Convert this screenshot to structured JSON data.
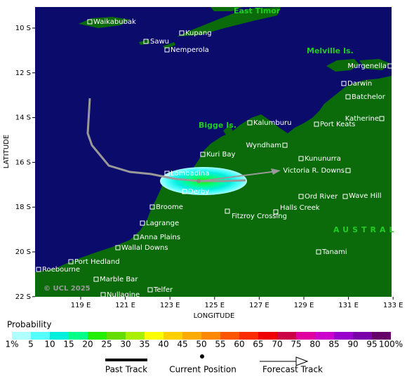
{
  "axes": {
    "x_label": "LONGITUDE",
    "y_label": "LATITUDE",
    "x_ticks": [
      "119 E",
      "121 E",
      "123 E",
      "125 E",
      "127 E",
      "129 E",
      "131 E",
      "133 E"
    ],
    "y_ticks": [
      "10 S",
      "12 S",
      "14 S",
      "16 S",
      "18 S",
      "20 S",
      "22 S"
    ]
  },
  "regions": [
    "East Timor",
    "Melville Is.",
    "Bigge Is.",
    "AUSTRAL"
  ],
  "places": [
    "Waikabubak",
    "Sawu",
    "Kupang",
    "Nemperola",
    "Murgenella",
    "Darwin",
    "Batchelor",
    "Katherine",
    "Kalumburu",
    "Port Keats",
    "Kuri Bay",
    "Wyndham",
    "Kununurra",
    "Lombadina",
    "Victoria R. Downs",
    "Derby",
    "Ord River",
    "Wave Hill",
    "Broome",
    "Halls Creek",
    "Fitzroy Crossing",
    "Lagrange",
    "Anna Plains",
    "Wallal Downs",
    "Tanami",
    "Port Hedland",
    "Roebourne",
    "Marble Bar",
    "Nullagine",
    "Telfer"
  ],
  "copyright": "© UCL 2025",
  "legend": {
    "title": "Probability",
    "labels": [
      "1%",
      "5",
      "10",
      "15",
      "20",
      "25",
      "30",
      "35",
      "40",
      "45",
      "50",
      "55",
      "60",
      "65",
      "70",
      "75",
      "80",
      "85",
      "90",
      "95",
      "100%"
    ],
    "colors": [
      "#b0ffff",
      "#55ffff",
      "#00eedd",
      "#00ff88",
      "#22ee00",
      "#66dd00",
      "#aaee00",
      "#ffff00",
      "#ffd000",
      "#ffaa00",
      "#ff8800",
      "#ff5500",
      "#ff2a00",
      "#ee0000",
      "#cc0044",
      "#e000a0",
      "#cc00cc",
      "#9900cc",
      "#7a00aa",
      "#660066"
    ],
    "past_track": "Past Track",
    "current_position": "Current Position",
    "forecast_track": "Forecast Track"
  }
}
